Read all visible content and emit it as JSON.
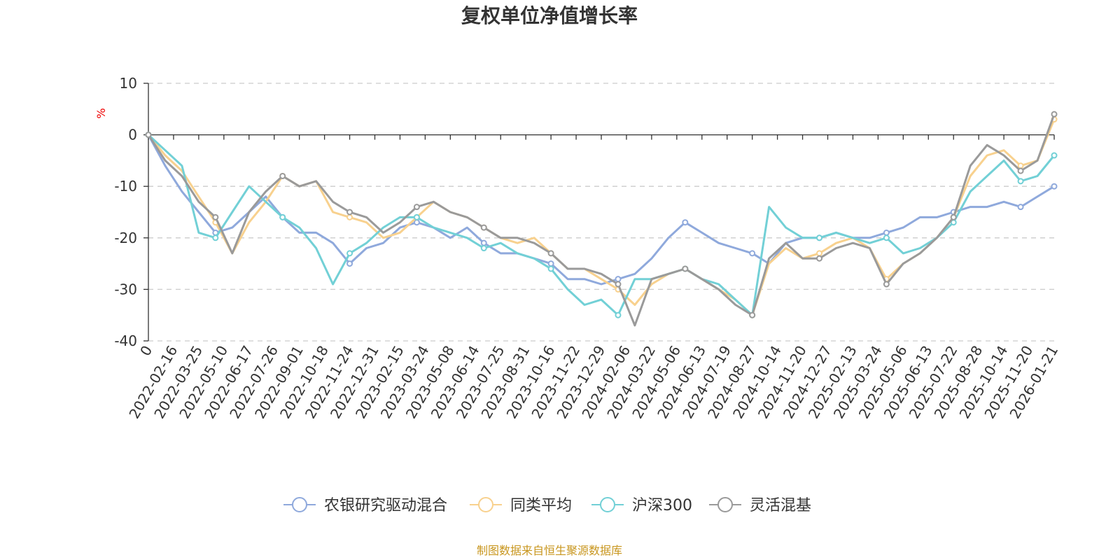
{
  "chart_data": {
    "type": "line",
    "title": "复权单位净值增长率",
    "ylabel": "%",
    "ylim": [
      -40,
      10
    ],
    "yticks": [
      10,
      0,
      -10,
      -20,
      -30,
      -40
    ],
    "grid": true,
    "legend_position": "bottom",
    "source": "制图数据来自恒生聚源数据库",
    "x_tick_labels": [
      "0",
      "2022-02-16",
      "2022-03-25",
      "2022-05-10",
      "2022-06-17",
      "2022-07-26",
      "2022-09-01",
      "2022-10-18",
      "2022-11-24",
      "2022-12-31",
      "2023-02-15",
      "2023-03-24",
      "2023-05-08",
      "2023-06-14",
      "2023-07-25",
      "2023-08-31",
      "2023-10-16",
      "2023-11-22",
      "2023-12-29",
      "2024-02-06",
      "2024-03-22",
      "2024-05-06",
      "2024-06-13",
      "2024-07-19",
      "2024-08-27",
      "2024-10-14",
      "2024-11-20",
      "2024-12-27",
      "2025-02-13",
      "2025-03-24",
      "2025-05-06",
      "2025-06-13",
      "2025-07-22",
      "2025-08-28",
      "2025-10-14",
      "2025-11-20",
      "2026-01-21"
    ],
    "series": [
      {
        "name": "农银研究驱动混合",
        "color": "#8fa9dc",
        "values": [
          0,
          -6,
          -11,
          -15,
          -19,
          -18,
          -15,
          -12,
          -16,
          -19,
          -19,
          -21,
          -25,
          -22,
          -21,
          -18,
          -17,
          -18,
          -20,
          -18,
          -21,
          -23,
          -23,
          -24,
          -25,
          -28,
          -28,
          -29,
          -28,
          -27,
          -24,
          -20,
          -17,
          -19,
          -21,
          -22,
          -23,
          -25,
          -21,
          -20,
          -20,
          -19,
          -20,
          -20,
          -19,
          -18,
          -16,
          -16,
          -15,
          -14,
          -14,
          -13,
          -14,
          -12,
          -10
        ]
      },
      {
        "name": "同类平均",
        "color": "#f8d18e",
        "values": [
          0,
          -4,
          -7,
          -12,
          -17,
          -23,
          -17,
          -13,
          -8,
          -10,
          -9,
          -15,
          -16,
          -17,
          -20,
          -19,
          -16,
          -13,
          -15,
          -16,
          -18,
          -20,
          -21,
          -20,
          -23,
          -26,
          -26,
          -28,
          -30,
          -33,
          -29,
          -27,
          -26,
          -28,
          -30,
          -32,
          -35,
          -25,
          -22,
          -24,
          -23,
          -21,
          -20,
          -22,
          -28,
          -25,
          -23,
          -20,
          -16,
          -8,
          -4,
          -3,
          -6,
          -5,
          3
        ]
      },
      {
        "name": "沪深300",
        "color": "#72d0d6",
        "values": [
          0,
          -3,
          -6,
          -19,
          -20,
          -15,
          -10,
          -13,
          -16,
          -18,
          -22,
          -29,
          -23,
          -21,
          -18,
          -16,
          -16,
          -18,
          -19,
          -20,
          -22,
          -21,
          -23,
          -24,
          -26,
          -30,
          -33,
          -32,
          -35,
          -28,
          -28,
          -27,
          -26,
          -28,
          -29,
          -32,
          -35,
          -14,
          -18,
          -20,
          -20,
          -19,
          -20,
          -21,
          -20,
          -23,
          -22,
          -20,
          -17,
          -11,
          -8,
          -5,
          -9,
          -8,
          -4
        ]
      },
      {
        "name": "灵活混基",
        "color": "#9a9a9a",
        "values": [
          0,
          -5,
          -8,
          -13,
          -16,
          -23,
          -15,
          -11,
          -8,
          -10,
          -9,
          -13,
          -15,
          -16,
          -19,
          -17,
          -14,
          -13,
          -15,
          -16,
          -18,
          -20,
          -20,
          -21,
          -23,
          -26,
          -26,
          -27,
          -29,
          -37,
          -28,
          -27,
          -26,
          -28,
          -30,
          -33,
          -35,
          -24,
          -21,
          -24,
          -24,
          -22,
          -21,
          -22,
          -29,
          -25,
          -23,
          -20,
          -16,
          -6,
          -2,
          -4,
          -7,
          -5,
          4
        ]
      }
    ]
  }
}
